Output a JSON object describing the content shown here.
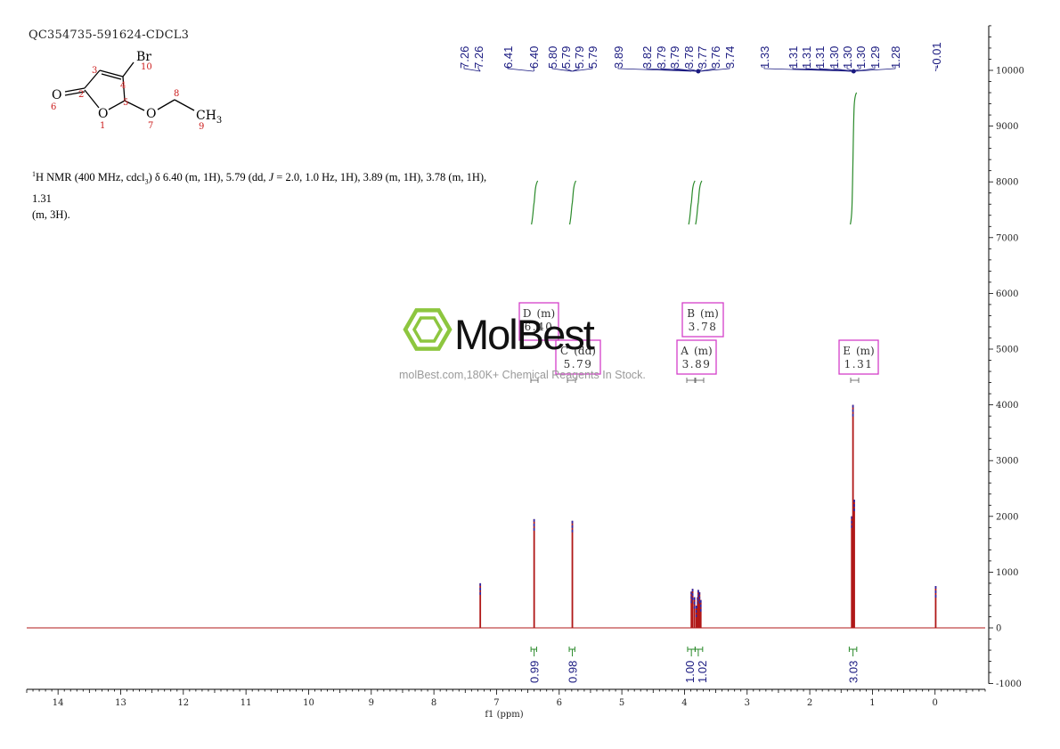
{
  "header": {
    "sample_id": "QC354735-591624-CDCL3"
  },
  "description": {
    "prefix_sup": "1",
    "text_a": "H NMR (400 MHz, cdcl",
    "text_sub": "3",
    "text_b": ") δ 6.40 (m, 1H), 5.79 (dd, ",
    "text_j": "J",
    "text_c": " = 2.0, 1.0 Hz, 1H), 3.89 (m, 1H), 3.78 (m, 1H), 1.31",
    "line2": "(m, 3H)."
  },
  "structure": {
    "atoms": [
      {
        "label": "Br",
        "num": "10"
      },
      {
        "label": "O",
        "num": "6"
      },
      {
        "label": "O",
        "num": "1"
      },
      {
        "label": "O",
        "num": "7"
      },
      {
        "label": "CH",
        "sub": "3",
        "num": "9"
      },
      {
        "num": "2"
      },
      {
        "num": "3"
      },
      {
        "num": "4"
      },
      {
        "num": "5"
      },
      {
        "num": "8"
      }
    ]
  },
  "watermark": {
    "brand": "MolBest",
    "tagline": "molBest.com,180K+ Chemical Reagents In Stock."
  },
  "colors": {
    "spectrum": "#b01818",
    "spectrum_blue": "#2a2ab0",
    "peak_labels": "#1a1a80",
    "integral": "#2a8a2a",
    "multiplet_box": "#d43fc9",
    "watermark": "#8dc63f"
  },
  "chart_data": {
    "type": "line",
    "title": "",
    "xlabel": "f1 (ppm)",
    "ylabel": "",
    "xlim": [
      14.5,
      -0.8
    ],
    "ylim": [
      -1000,
      10500
    ],
    "x_reversed": true,
    "x_ticks": [
      "14",
      "13",
      "12",
      "11",
      "10",
      "9",
      "8",
      "7",
      "6",
      "5",
      "4",
      "3",
      "2",
      "1",
      "0"
    ],
    "x_tick_values": [
      14,
      13,
      12,
      11,
      10,
      9,
      8,
      7,
      6,
      5,
      4,
      3,
      2,
      1,
      0
    ],
    "y_ticks": [
      "10000",
      "9000",
      "8000",
      "7000",
      "6000",
      "5000",
      "4000",
      "3000",
      "2000",
      "1000",
      "0",
      "-1000"
    ],
    "y_tick_values": [
      10000,
      9000,
      8000,
      7000,
      6000,
      5000,
      4000,
      3000,
      2000,
      1000,
      0,
      -1000
    ],
    "peaks": [
      {
        "ppm": 7.26,
        "height": 800
      },
      {
        "ppm": 6.4,
        "height": 1950
      },
      {
        "ppm": 5.79,
        "height": 1920
      },
      {
        "ppm": 3.89,
        "height": 650
      },
      {
        "ppm": 3.87,
        "height": 700
      },
      {
        "ppm": 3.84,
        "height": 550
      },
      {
        "ppm": 3.81,
        "height": 400
      },
      {
        "ppm": 3.79,
        "height": 550
      },
      {
        "ppm": 3.78,
        "height": 680
      },
      {
        "ppm": 3.76,
        "height": 640
      },
      {
        "ppm": 3.74,
        "height": 500
      },
      {
        "ppm": 1.33,
        "height": 2000
      },
      {
        "ppm": 1.31,
        "height": 4000
      },
      {
        "ppm": 1.29,
        "height": 2300
      },
      {
        "ppm": -0.01,
        "height": 750
      }
    ],
    "peak_label_groups": [
      {
        "labels": [
          "7.26",
          "7.26"
        ],
        "ppm": [
          7.26,
          7.26
        ]
      },
      {
        "labels": [
          "6.41",
          "6.40"
        ],
        "ppm": [
          6.41,
          6.4
        ]
      },
      {
        "labels": [
          "5.80",
          "5.79",
          "5.79",
          "5.79"
        ],
        "ppm": [
          5.8,
          5.79,
          5.79,
          5.79
        ]
      },
      {
        "labels": [
          "3.89",
          "3.82",
          "3.79",
          "3.79",
          "3.78",
          "3.77",
          "3.76",
          "3.74"
        ],
        "ppm": [
          3.89,
          3.82,
          3.79,
          3.79,
          3.78,
          3.77,
          3.76,
          3.74
        ]
      },
      {
        "labels": [
          "1.33",
          "1.31",
          "1.31",
          "1.31",
          "1.30",
          "1.30",
          "1.30",
          "1.29",
          "1.28"
        ],
        "ppm": [
          1.33,
          1.31,
          1.31,
          1.31,
          1.3,
          1.3,
          1.3,
          1.29,
          1.28
        ]
      },
      {
        "labels": [
          "-0.01"
        ],
        "ppm": [
          -0.01
        ]
      }
    ],
    "multiplets": [
      {
        "id": "D",
        "type": "(m)",
        "shift": "6.40",
        "ppm": 6.4
      },
      {
        "id": "C",
        "type": "(dd)",
        "shift": "5.79",
        "ppm": 5.79
      },
      {
        "id": "B",
        "type": "(m)",
        "shift": "3.78",
        "ppm": 3.78
      },
      {
        "id": "A",
        "type": "(m)",
        "shift": "3.89",
        "ppm": 3.89
      },
      {
        "id": "E",
        "type": "(m)",
        "shift": "1.31",
        "ppm": 1.31
      }
    ],
    "integrals": [
      {
        "value": "0.99",
        "ppm": 6.4,
        "from": 6.45,
        "to": 6.36
      },
      {
        "value": "0.98",
        "ppm": 5.79,
        "from": 5.84,
        "to": 5.75
      },
      {
        "value": "1.00",
        "ppm": 3.89,
        "from": 3.95,
        "to": 3.83
      },
      {
        "value": "1.02",
        "ppm": 3.78,
        "from": 3.83,
        "to": 3.71
      },
      {
        "value": "3.03",
        "ppm": 1.31,
        "from": 1.37,
        "to": 1.25
      }
    ]
  }
}
